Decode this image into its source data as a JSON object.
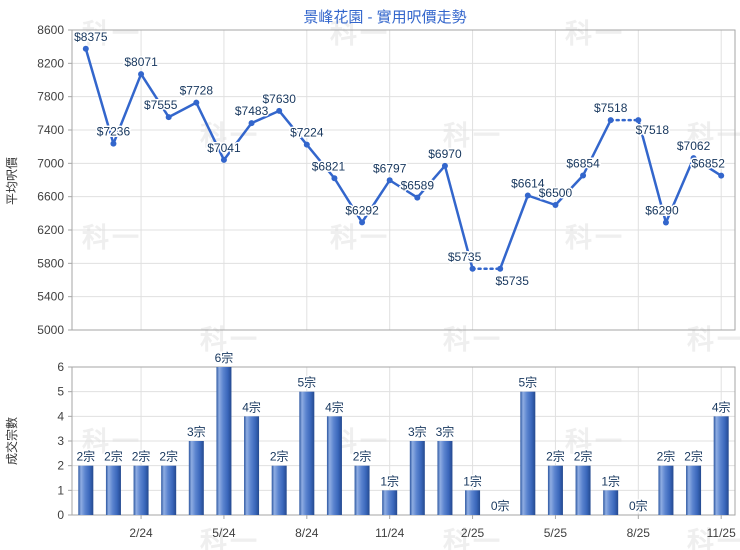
{
  "title": "景峰花園 - 實用呎價走勢",
  "watermark_text": "科一",
  "colors": {
    "line": "#3366cc",
    "point_label": "#17375e",
    "tick_label": "#404040",
    "grid": "#e0e0e0",
    "border": "#a6a6a6",
    "title": "#3366cc",
    "bar_edge": "#27509f",
    "bar_highlight": "#8fade2",
    "bar_mid": "#4a77c8"
  },
  "chart_data": [
    {
      "type": "line",
      "title": "景峰花園 - 實用呎價走勢",
      "ylabel": "平均呎價",
      "ylim": [
        5000,
        8600
      ],
      "yticks": [
        5000,
        5400,
        5800,
        6200,
        6600,
        7000,
        7400,
        7800,
        8200,
        8600
      ],
      "n_points": 24,
      "values": [
        8375,
        7236,
        8071,
        7555,
        7728,
        7041,
        7483,
        7630,
        7224,
        6821,
        6292,
        6797,
        6589,
        6970,
        5735,
        5735,
        6614,
        6500,
        6854,
        7518,
        7518,
        6290,
        7062,
        6852
      ],
      "point_labels": [
        "$8375",
        "$7236",
        "$8071",
        "$7555",
        "$7728",
        "$7041",
        "$7483",
        "$7630",
        "$7224",
        "$6821",
        "$6292",
        "$6797",
        "$6589",
        "$6970",
        "$5735",
        "$5735",
        "$6614",
        "$6500",
        "$6854",
        "$7518",
        "$7518",
        "$6290",
        "$7062",
        "$6852"
      ],
      "dotted_segment_start_indices": [
        14,
        19
      ],
      "xtick_month_indices": [
        2,
        5,
        8,
        11,
        14,
        17,
        20,
        23
      ],
      "xtick_labels": [
        "2/24",
        "5/24",
        "8/24",
        "11/24",
        "2/25",
        "5/25",
        "8/25",
        "11/25"
      ],
      "label_offsets": {
        "0": [
          5,
          -8
        ],
        "3": [
          -8,
          -8
        ],
        "9": [
          -6,
          -8
        ],
        "14": [
          -8,
          -8
        ],
        "15": [
          12,
          16
        ],
        "20": [
          14,
          14
        ],
        "21": [
          -4,
          -8
        ],
        "23": [
          -13,
          -8
        ]
      },
      "grid": true,
      "legend": "none"
    },
    {
      "type": "bar",
      "ylabel": "成交宗數",
      "ylim": [
        0,
        6
      ],
      "yticks": [
        0,
        1,
        2,
        3,
        4,
        5,
        6
      ],
      "values": [
        2,
        2,
        2,
        2,
        3,
        6,
        4,
        2,
        5,
        4,
        2,
        1,
        3,
        3,
        1,
        0,
        5,
        2,
        2,
        1,
        0,
        2,
        2,
        4
      ],
      "bar_labels": [
        "2宗",
        "2宗",
        "2宗",
        "2宗",
        "3宗",
        "6宗",
        "4宗",
        "2宗",
        "5宗",
        "4宗",
        "2宗",
        "1宗",
        "3宗",
        "3宗",
        "1宗",
        "0宗",
        "5宗",
        "2宗",
        "2宗",
        "1宗",
        "0宗",
        "2宗",
        "2宗",
        "4宗"
      ],
      "xtick_month_indices": [
        2,
        5,
        8,
        11,
        14,
        17,
        20,
        23
      ],
      "xtick_labels": [
        "2/24",
        "5/24",
        "8/24",
        "11/24",
        "2/25",
        "5/25",
        "8/25",
        "11/25"
      ],
      "grid": true,
      "legend": "none"
    }
  ]
}
